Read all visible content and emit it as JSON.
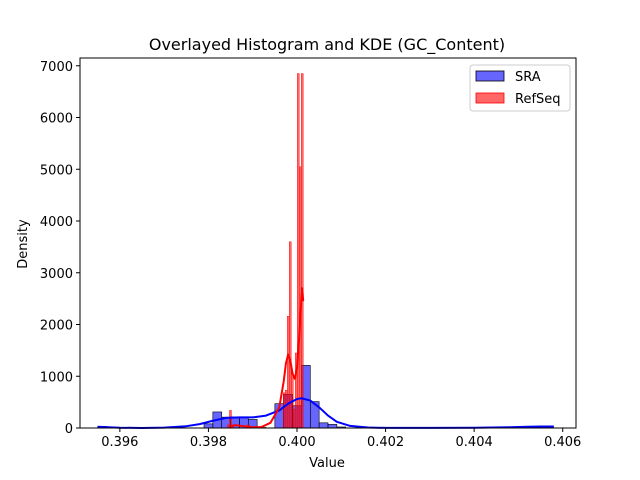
{
  "chart_data": {
    "type": "histogram",
    "title": "Overlayed Histogram and KDE (GC_Content)",
    "xlabel": "Value",
    "ylabel": "Density",
    "xlim": [
      0.3951,
      0.4063
    ],
    "ylim": [
      0,
      7150
    ],
    "xticks": [
      0.396,
      0.398,
      0.4,
      0.402,
      0.404,
      0.406
    ],
    "xtick_labels": [
      "0.396",
      "0.398",
      "0.400",
      "0.402",
      "0.404",
      "0.406"
    ],
    "yticks": [
      0,
      1000,
      2000,
      3000,
      4000,
      5000,
      6000,
      7000
    ],
    "ytick_labels": [
      "0",
      "1000",
      "2000",
      "3000",
      "4000",
      "5000",
      "6000",
      "7000"
    ],
    "legend_position": "top-right",
    "grid": false,
    "series": [
      {
        "name": "SRA",
        "color": "#0000ff",
        "fill_opacity": 0.6,
        "bins": [
          {
            "x0": 0.3955,
            "x1": 0.3957,
            "y": 30
          },
          {
            "x0": 0.3979,
            "x1": 0.3981,
            "y": 80
          },
          {
            "x0": 0.3981,
            "x1": 0.3983,
            "y": 310
          },
          {
            "x0": 0.3983,
            "x1": 0.3985,
            "y": 210
          },
          {
            "x0": 0.3985,
            "x1": 0.3987,
            "y": 215
          },
          {
            "x0": 0.3987,
            "x1": 0.3989,
            "y": 215
          },
          {
            "x0": 0.3989,
            "x1": 0.3991,
            "y": 165
          },
          {
            "x0": 0.3991,
            "x1": 0.3993,
            "y": 10
          },
          {
            "x0": 0.3995,
            "x1": 0.3997,
            "y": 470
          },
          {
            "x0": 0.3997,
            "x1": 0.3999,
            "y": 650
          },
          {
            "x0": 0.3999,
            "x1": 0.4001,
            "y": 430
          },
          {
            "x0": 0.4001,
            "x1": 0.4003,
            "y": 1210
          },
          {
            "x0": 0.4003,
            "x1": 0.4005,
            "y": 510
          },
          {
            "x0": 0.4005,
            "x1": 0.4007,
            "y": 100
          },
          {
            "x0": 0.4007,
            "x1": 0.4009,
            "y": 70
          },
          {
            "x0": 0.4009,
            "x1": 0.4011,
            "y": 20
          },
          {
            "x0": 0.4053,
            "x1": 0.4055,
            "y": 25
          },
          {
            "x0": 0.4055,
            "x1": 0.4057,
            "y": 25
          }
        ],
        "kde": [
          [
            0.3955,
            25
          ],
          [
            0.396,
            5
          ],
          [
            0.3965,
            1
          ],
          [
            0.397,
            8
          ],
          [
            0.3975,
            35
          ],
          [
            0.3978,
            75
          ],
          [
            0.3981,
            140
          ],
          [
            0.3984,
            195
          ],
          [
            0.3987,
            205
          ],
          [
            0.399,
            205
          ],
          [
            0.3993,
            240
          ],
          [
            0.3996,
            340
          ],
          [
            0.3998,
            470
          ],
          [
            0.4,
            560
          ],
          [
            0.4001,
            575
          ],
          [
            0.4003,
            530
          ],
          [
            0.4005,
            400
          ],
          [
            0.4007,
            240
          ],
          [
            0.4009,
            120
          ],
          [
            0.4012,
            40
          ],
          [
            0.4016,
            10
          ],
          [
            0.402,
            2
          ],
          [
            0.403,
            2
          ],
          [
            0.404,
            6
          ],
          [
            0.4048,
            15
          ],
          [
            0.4052,
            25
          ],
          [
            0.4055,
            30
          ],
          [
            0.4058,
            28
          ]
        ]
      },
      {
        "name": "RefSeq",
        "color": "#ff0000",
        "fill_opacity": 0.6,
        "bins": [
          {
            "x0": 0.39843,
            "x1": 0.398475,
            "y": 60
          },
          {
            "x0": 0.398475,
            "x1": 0.39852,
            "y": 340
          },
          {
            "x0": 0.39852,
            "x1": 0.398565,
            "y": 60
          },
          {
            "x0": 0.39888,
            "x1": 0.398925,
            "y": 60
          },
          {
            "x0": 0.39969,
            "x1": 0.399735,
            "y": 680
          },
          {
            "x0": 0.399735,
            "x1": 0.39978,
            "y": 730
          },
          {
            "x0": 0.39978,
            "x1": 0.399825,
            "y": 2160
          },
          {
            "x0": 0.399825,
            "x1": 0.39987,
            "y": 3600
          },
          {
            "x0": 0.39987,
            "x1": 0.399915,
            "y": 1080
          },
          {
            "x0": 0.399915,
            "x1": 0.39996,
            "y": 360
          },
          {
            "x0": 0.39996,
            "x1": 0.400005,
            "y": 1450
          },
          {
            "x0": 0.400005,
            "x1": 0.40005,
            "y": 6850
          },
          {
            "x0": 0.40005,
            "x1": 0.400095,
            "y": 5050
          },
          {
            "x0": 0.400095,
            "x1": 0.40014,
            "y": 6850
          }
        ],
        "kde": [
          [
            0.3985,
            30
          ],
          [
            0.3986,
            55
          ],
          [
            0.3988,
            35
          ],
          [
            0.399,
            15
          ],
          [
            0.3992,
            20
          ],
          [
            0.3994,
            100
          ],
          [
            0.3996,
            400
          ],
          [
            0.3997,
            900
          ],
          [
            0.39975,
            1250
          ],
          [
            0.3998,
            1420
          ],
          [
            0.39985,
            1300
          ],
          [
            0.3999,
            1050
          ],
          [
            0.39995,
            950
          ],
          [
            0.4,
            1150
          ],
          [
            0.40005,
            1750
          ],
          [
            0.4001,
            2500
          ],
          [
            0.40012,
            2700
          ],
          [
            0.40014,
            2450
          ]
        ]
      }
    ]
  }
}
